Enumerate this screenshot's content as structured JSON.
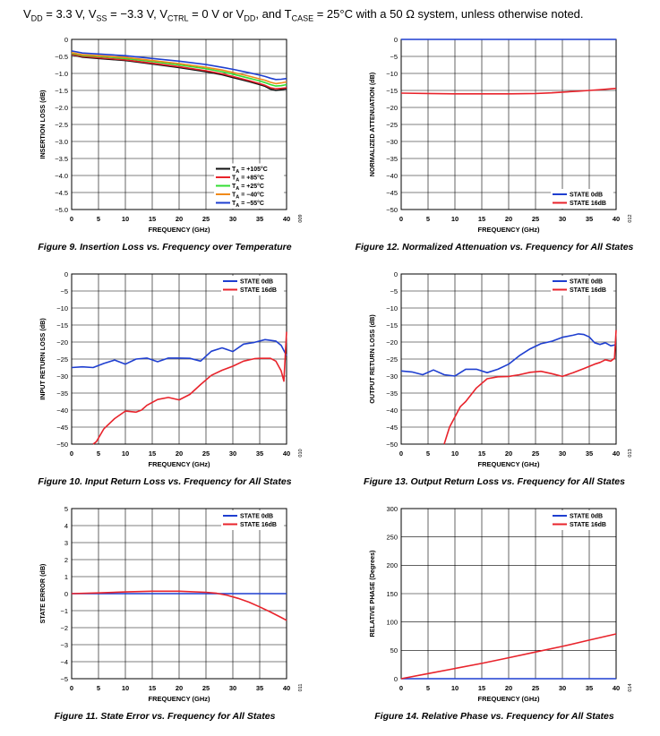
{
  "header": {
    "parts": [
      {
        "t": "V"
      },
      {
        "s": "DD"
      },
      {
        "t": " = 3.3 V, V"
      },
      {
        "s": "SS"
      },
      {
        "t": " = −3.3 V, V"
      },
      {
        "s": "CTRL"
      },
      {
        "t": " = 0 V or V"
      },
      {
        "s": "DD"
      },
      {
        "t": ", and T"
      },
      {
        "s": "CASE"
      },
      {
        "t": " = 25°C with a 50 Ω system, unless otherwise noted."
      }
    ]
  },
  "colors": {
    "blue": "#1f3fd0",
    "red": "#e8232b",
    "black": "#111111",
    "green": "#33dd33",
    "orange": "#f08a1a",
    "magenta": "#7a2fd0"
  },
  "chart_data": [
    {
      "id": "fig9",
      "type": "line",
      "title": "Figure 9. Insertion Loss vs. Frequency over Temperature",
      "xlabel": "FREQUENCY (GHz)",
      "ylabel": "INSERTION LOSS (dB)",
      "xlim": [
        0,
        40
      ],
      "ylim": [
        -5,
        0
      ],
      "xticks": [
        "0",
        "5",
        "10",
        "15",
        "20",
        "25",
        "30",
        "35",
        "40"
      ],
      "yticks": [
        "0",
        "−0.5",
        "−1.0",
        "−1.5",
        "−2.0",
        "−2.5",
        "−3.0",
        "−3.5",
        "−4.0",
        "−4.5",
        "−5.0"
      ],
      "grid": true,
      "legend_position": "bottom-right",
      "code": "009",
      "series": [
        {
          "name": "T_A = +105°C",
          "label": {
            "a": "T",
            "s": "A",
            "b": " = +105°C"
          },
          "color": "#111111",
          "x": [
            0,
            2,
            5,
            10,
            15,
            20,
            25,
            28,
            30,
            33,
            35,
            36,
            37,
            38,
            39,
            40
          ],
          "y": [
            -0.45,
            -0.52,
            -0.56,
            -0.62,
            -0.72,
            -0.83,
            -0.95,
            -1.04,
            -1.12,
            -1.24,
            -1.33,
            -1.38,
            -1.46,
            -1.5,
            -1.48,
            -1.45
          ]
        },
        {
          "name": "T_A = +85°C",
          "label": {
            "a": "T",
            "s": "A",
            "b": " = +85°C"
          },
          "color": "#e8232b",
          "x": [
            0,
            2,
            5,
            10,
            15,
            20,
            25,
            28,
            30,
            33,
            35,
            36,
            37,
            38,
            39,
            40
          ],
          "y": [
            -0.44,
            -0.5,
            -0.54,
            -0.6,
            -0.7,
            -0.8,
            -0.92,
            -1.01,
            -1.09,
            -1.21,
            -1.3,
            -1.35,
            -1.42,
            -1.45,
            -1.44,
            -1.42
          ]
        },
        {
          "name": "T_A = +25°C",
          "label": {
            "a": "T",
            "s": "A",
            "b": " = +25°C"
          },
          "color": "#33dd33",
          "x": [
            0,
            2,
            5,
            10,
            15,
            20,
            25,
            28,
            30,
            33,
            35,
            36,
            37,
            38,
            39,
            40
          ],
          "y": [
            -0.41,
            -0.47,
            -0.5,
            -0.56,
            -0.65,
            -0.75,
            -0.86,
            -0.95,
            -1.02,
            -1.14,
            -1.22,
            -1.27,
            -1.33,
            -1.37,
            -1.36,
            -1.33
          ]
        },
        {
          "name": "T_A = −40°C",
          "label": {
            "a": "T",
            "s": "A",
            "b": " = −40°C"
          },
          "color": "#f08a1a",
          "x": [
            0,
            2,
            5,
            10,
            15,
            20,
            25,
            28,
            30,
            33,
            35,
            36,
            37,
            38,
            39,
            40
          ],
          "y": [
            -0.39,
            -0.45,
            -0.48,
            -0.53,
            -0.62,
            -0.71,
            -0.82,
            -0.9,
            -0.97,
            -1.08,
            -1.16,
            -1.2,
            -1.26,
            -1.3,
            -1.28,
            -1.25
          ]
        },
        {
          "name": "T_A = −55°C",
          "label": {
            "a": "T",
            "s": "A",
            "b": " = −55°C"
          },
          "color": "#1f3fd0",
          "x": [
            0,
            2,
            5,
            10,
            15,
            20,
            25,
            28,
            30,
            33,
            35,
            36,
            37,
            38,
            39,
            40
          ],
          "y": [
            -0.34,
            -0.4,
            -0.43,
            -0.48,
            -0.56,
            -0.64,
            -0.74,
            -0.82,
            -0.88,
            -0.98,
            -1.05,
            -1.09,
            -1.14,
            -1.18,
            -1.17,
            -1.15
          ]
        }
      ]
    },
    {
      "id": "fig12",
      "type": "line",
      "title": "Figure 12. Normalized Attenuation vs. Frequency for All States",
      "xlabel": "FREQUENCY (GHz)",
      "ylabel": "NORMALIZED ATTENUATION (dB)",
      "xlim": [
        0,
        40
      ],
      "ylim": [
        -50,
        0
      ],
      "xticks": [
        "0",
        "5",
        "10",
        "15",
        "20",
        "25",
        "30",
        "35",
        "40"
      ],
      "yticks": [
        "0",
        "−5",
        "−10",
        "−15",
        "−20",
        "−25",
        "−30",
        "−35",
        "−40",
        "−45",
        "−50"
      ],
      "grid": true,
      "legend_position": "bottom-right",
      "code": "012",
      "series": [
        {
          "name": "STATE 0dB",
          "color": "#1f3fd0",
          "x": [
            0,
            40
          ],
          "y": [
            0,
            0
          ]
        },
        {
          "name": "STATE 16dB",
          "color": "#e8232b",
          "x": [
            0,
            5,
            10,
            15,
            20,
            25,
            28,
            30,
            33,
            35,
            37,
            40
          ],
          "y": [
            -15.8,
            -15.9,
            -16.0,
            -16.0,
            -16.0,
            -15.9,
            -15.7,
            -15.5,
            -15.2,
            -15.0,
            -14.8,
            -14.4
          ]
        }
      ]
    },
    {
      "id": "fig10",
      "type": "line",
      "title": "Figure 10. Input Return Loss vs. Frequency for All States",
      "xlabel": "FREQUENCY (GHz)",
      "ylabel": "INPUT RETURN LOSS (dB)",
      "xlim": [
        0,
        40
      ],
      "ylim": [
        -50,
        0
      ],
      "xticks": [
        "0",
        "5",
        "10",
        "15",
        "20",
        "25",
        "30",
        "35",
        "40"
      ],
      "yticks": [
        "0",
        "−5",
        "−10",
        "−15",
        "−20",
        "−25",
        "−30",
        "−35",
        "−40",
        "−45",
        "−50"
      ],
      "grid": true,
      "legend_position": "top-right",
      "code": "010",
      "series": [
        {
          "name": "STATE 0dB",
          "color": "#1f3fd0",
          "x": [
            0,
            2,
            4,
            6,
            8,
            10,
            12,
            14,
            16,
            18,
            20,
            22,
            24,
            26,
            28,
            30,
            32,
            34,
            36,
            38,
            39,
            40
          ],
          "y": [
            -27.5,
            -27.3,
            -27.5,
            -26.3,
            -25.3,
            -26.5,
            -25.0,
            -24.7,
            -25.8,
            -24.7,
            -24.7,
            -24.8,
            -25.6,
            -22.7,
            -21.7,
            -22.8,
            -20.6,
            -20.1,
            -19.3,
            -19.7,
            -21.0,
            -24.0
          ]
        },
        {
          "name": "STATE 16dB",
          "color": "#e8232b",
          "x": [
            4,
            4.6,
            6,
            8,
            10,
            12,
            13,
            14,
            16,
            18,
            20,
            22,
            24,
            26,
            28,
            30,
            32,
            34,
            35,
            37,
            38,
            39,
            39.5,
            40
          ],
          "y": [
            -50,
            -49.3,
            -45.5,
            -42.5,
            -40.3,
            -40.6,
            -40.0,
            -38.6,
            -36.9,
            -36.3,
            -37.0,
            -35.4,
            -32.5,
            -29.8,
            -28.3,
            -27.1,
            -25.6,
            -24.9,
            -24.8,
            -24.8,
            -25.6,
            -28.5,
            -31.5,
            -17.0
          ]
        }
      ]
    },
    {
      "id": "fig13",
      "type": "line",
      "title": "Figure 13. Output Return Loss vs. Frequency for All States",
      "xlabel": "FREQUENCY (GHz)",
      "ylabel": "OUTPUT RETURN LOSS (dB)",
      "xlim": [
        0,
        40
      ],
      "ylim": [
        -50,
        0
      ],
      "xticks": [
        "0",
        "5",
        "10",
        "15",
        "20",
        "25",
        "30",
        "35",
        "40"
      ],
      "yticks": [
        "0",
        "−5",
        "−10",
        "−15",
        "−20",
        "−25",
        "−30",
        "−35",
        "−40",
        "−45",
        "−50"
      ],
      "grid": true,
      "legend_position": "top-right",
      "code": "013",
      "series": [
        {
          "name": "STATE 0dB",
          "color": "#1f3fd0",
          "x": [
            0,
            2,
            4,
            6,
            8,
            10,
            11,
            12,
            14,
            16,
            18,
            20,
            22,
            24,
            26,
            28,
            30,
            32,
            33,
            34,
            35,
            36,
            37,
            38,
            39,
            40
          ],
          "y": [
            -28.5,
            -28.8,
            -29.6,
            -28.2,
            -29.6,
            -30.0,
            -29.0,
            -28.0,
            -28.0,
            -29.0,
            -28.0,
            -26.5,
            -24.0,
            -22.0,
            -20.5,
            -19.8,
            -18.6,
            -18.0,
            -17.6,
            -17.8,
            -18.5,
            -20.2,
            -20.7,
            -20.2,
            -21.1,
            -20.8
          ]
        },
        {
          "name": "STATE 16dB",
          "color": "#e8232b",
          "x": [
            8,
            9,
            10,
            11,
            12,
            14,
            16,
            18,
            20,
            22,
            24,
            26,
            28,
            30,
            32,
            34,
            36,
            37,
            38,
            39,
            39.7,
            40
          ],
          "y": [
            -50,
            -45.0,
            -42.0,
            -39.0,
            -37.5,
            -33.5,
            -30.8,
            -30.2,
            -30.1,
            -29.6,
            -28.9,
            -28.6,
            -29.3,
            -30.1,
            -29.0,
            -27.8,
            -26.5,
            -26.0,
            -25.2,
            -25.6,
            -24.8,
            -16.5
          ]
        }
      ]
    },
    {
      "id": "fig11",
      "type": "line",
      "title": "Figure 11. State Error vs. Frequency for All States",
      "xlabel": "FREQUENCY (GHz)",
      "ylabel": "STATE ERROR (dB)",
      "xlim": [
        0,
        40
      ],
      "ylim": [
        -5,
        5
      ],
      "xticks": [
        "0",
        "5",
        "10",
        "15",
        "20",
        "25",
        "30",
        "35",
        "40"
      ],
      "yticks": [
        "5",
        "4",
        "3",
        "2",
        "1",
        "0",
        "−1",
        "−2",
        "−3",
        "−4",
        "−5"
      ],
      "grid": true,
      "legend_position": "top-right",
      "code": "011",
      "series": [
        {
          "name": "STATE 0dB",
          "color": "#1f3fd0",
          "x": [
            0,
            40
          ],
          "y": [
            0,
            0
          ]
        },
        {
          "name": "STATE 16dB",
          "color": "#e8232b",
          "x": [
            0,
            5,
            10,
            15,
            20,
            25,
            27,
            29,
            31,
            33,
            35,
            37,
            39,
            40
          ],
          "y": [
            0.0,
            0.04,
            0.1,
            0.14,
            0.14,
            0.08,
            0.02,
            -0.1,
            -0.28,
            -0.5,
            -0.78,
            -1.08,
            -1.4,
            -1.57
          ]
        }
      ]
    },
    {
      "id": "fig14",
      "type": "line",
      "title": "Figure 14. Relative Phase vs. Frequency for All States",
      "xlabel": "FREQUENCY (GHz)",
      "ylabel": "RELATIVE PHASE (Degrees)",
      "xlim": [
        0,
        40
      ],
      "ylim": [
        0,
        300
      ],
      "xticks": [
        "0",
        "5",
        "10",
        "15",
        "20",
        "25",
        "30",
        "35",
        "40"
      ],
      "yticks": [
        "300",
        "250",
        "200",
        "150",
        "100",
        "50",
        "0"
      ],
      "grid": true,
      "legend_position": "top-right",
      "code": "014",
      "series": [
        {
          "name": "STATE 0dB",
          "color": "#1f3fd0",
          "x": [
            0,
            40
          ],
          "y": [
            0,
            0
          ]
        },
        {
          "name": "STATE 16dB",
          "color": "#e8232b",
          "x": [
            0,
            5,
            10,
            15,
            20,
            25,
            30,
            35,
            40
          ],
          "y": [
            0,
            9,
            18,
            27,
            37,
            47,
            57,
            68,
            79
          ]
        }
      ]
    }
  ]
}
